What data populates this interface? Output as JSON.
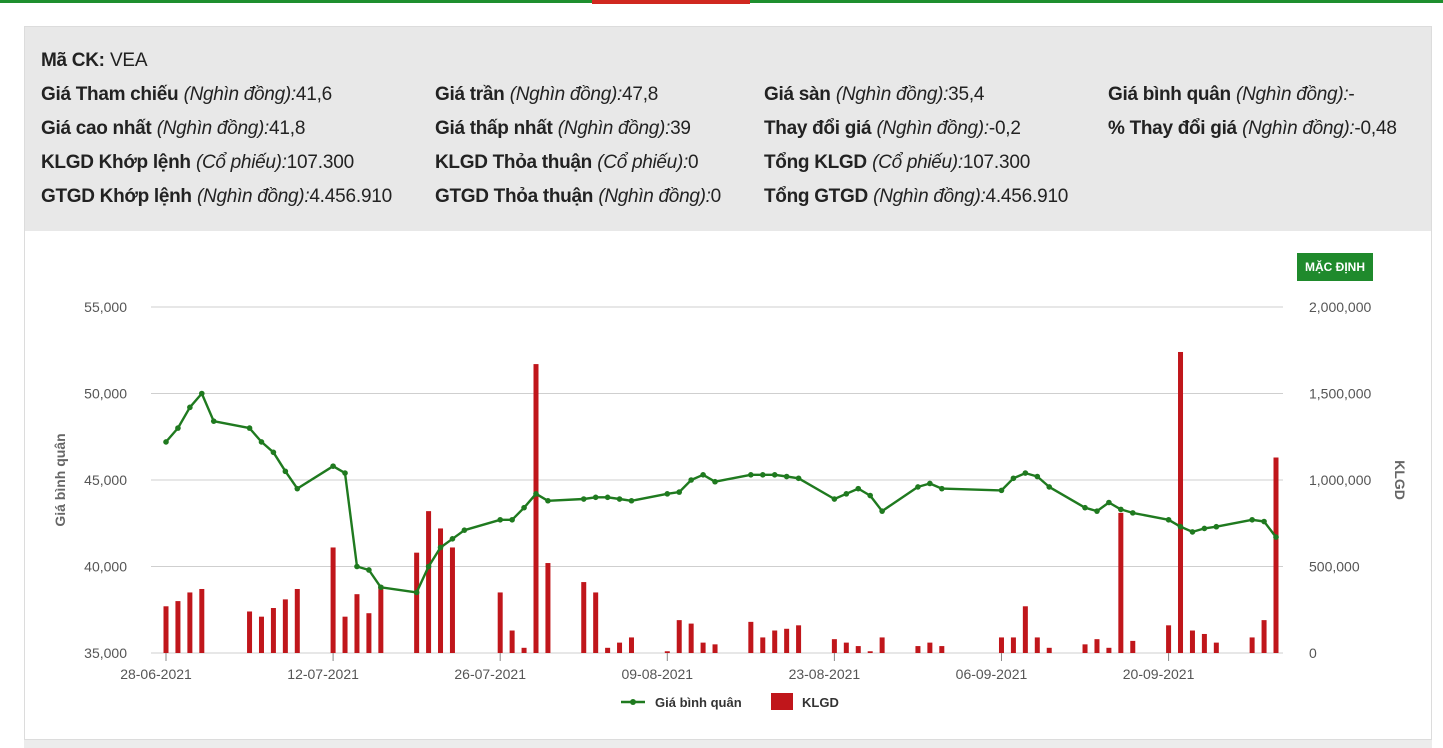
{
  "info": {
    "ma_ck": {
      "label": "Mã CK:",
      "value": "VEA"
    },
    "rows": [
      [
        {
          "label": "Giá Tham chiếu",
          "unit": "(Nghìn đồng):",
          "value": "41,6"
        },
        {
          "label": "Giá trần",
          "unit": "(Nghìn đồng):",
          "value": "47,8"
        },
        {
          "label": "Giá sàn",
          "unit": "(Nghìn đồng):",
          "value": "35,4"
        },
        {
          "label": "Giá bình quân",
          "unit": "(Nghìn đồng):",
          "value": "-"
        }
      ],
      [
        {
          "label": "Giá cao nhất",
          "unit": "(Nghìn đồng):",
          "value": "41,8"
        },
        {
          "label": "Giá thấp nhất",
          "unit": "(Nghìn đồng):",
          "value": "39"
        },
        {
          "label": "Thay đổi giá",
          "unit": "(Nghìn đồng):",
          "value": "-0,2"
        },
        {
          "label": "% Thay đổi giá",
          "unit": "(Nghìn đồng):",
          "value": "-0,48"
        }
      ],
      [
        {
          "label": "KLGD Khớp lệnh",
          "unit": "(Cổ phiếu):",
          "value": "107.300"
        },
        {
          "label": "KLGD Thỏa thuận",
          "unit": "(Cổ phiếu):",
          "value": "0"
        },
        {
          "label": "Tổng KLGD",
          "unit": "(Cổ phiếu):",
          "value": "107.300"
        },
        null
      ],
      [
        {
          "label": "GTGD Khớp lệnh",
          "unit": "(Nghìn đồng):",
          "value": "4.456.910"
        },
        {
          "label": "GTGD Thỏa thuận",
          "unit": "(Nghìn đồng):",
          "value": "0"
        },
        {
          "label": "Tổng GTGD",
          "unit": "(Nghìn đồng):",
          "value": "4.456.910"
        },
        null
      ]
    ]
  },
  "default_button": "MẶC ĐỊNH",
  "colors": {
    "price": "#1f7a1f",
    "volume": "#c0161b",
    "grid": "#cfcfcf",
    "accent": "#1f8a2c"
  },
  "chart_data": {
    "type": "bar+line",
    "x": [
      "28-06-2021",
      "29-06-2021",
      "30-06-2021",
      "01-07-2021",
      "02-07-2021",
      "05-07-2021",
      "06-07-2021",
      "07-07-2021",
      "08-07-2021",
      "09-07-2021",
      "12-07-2021",
      "13-07-2021",
      "14-07-2021",
      "15-07-2021",
      "16-07-2021",
      "19-07-2021",
      "20-07-2021",
      "21-07-2021",
      "22-07-2021",
      "23-07-2021",
      "26-07-2021",
      "27-07-2021",
      "28-07-2021",
      "29-07-2021",
      "30-07-2021",
      "02-08-2021",
      "03-08-2021",
      "04-08-2021",
      "05-08-2021",
      "06-08-2021",
      "09-08-2021",
      "10-08-2021",
      "11-08-2021",
      "12-08-2021",
      "13-08-2021",
      "16-08-2021",
      "17-08-2021",
      "18-08-2021",
      "19-08-2021",
      "20-08-2021",
      "23-08-2021",
      "24-08-2021",
      "25-08-2021",
      "26-08-2021",
      "27-08-2021",
      "30-08-2021",
      "31-08-2021",
      "01-09-2021",
      "06-09-2021",
      "07-09-2021",
      "08-09-2021",
      "09-09-2021",
      "10-09-2021",
      "13-09-2021",
      "14-09-2021",
      "15-09-2021",
      "16-09-2021",
      "17-09-2021",
      "20-09-2021",
      "21-09-2021",
      "22-09-2021",
      "23-09-2021",
      "24-09-2021",
      "27-09-2021",
      "28-09-2021",
      "29-09-2021"
    ],
    "x_ticks": [
      "28-06-2021",
      "12-07-2021",
      "26-07-2021",
      "09-08-2021",
      "23-08-2021",
      "06-09-2021",
      "20-09-2021"
    ],
    "series": [
      {
        "name": "Giá bình quân",
        "type": "line",
        "axis": "left",
        "values": [
          47200,
          48000,
          49200,
          50000,
          48400,
          48000,
          47200,
          46600,
          45500,
          44500,
          45800,
          45400,
          40000,
          39800,
          38800,
          38500,
          40000,
          41100,
          41600,
          42100,
          42700,
          42700,
          43400,
          44200,
          43800,
          43900,
          44000,
          44000,
          43900,
          43800,
          44200,
          44300,
          45000,
          45300,
          44900,
          45300,
          45300,
          45300,
          45200,
          45100,
          43900,
          44200,
          44500,
          44100,
          43200,
          44600,
          44800,
          44500,
          44400,
          45100,
          45400,
          45200,
          44600,
          43400,
          43200,
          43700,
          43300,
          43100,
          42700,
          42300,
          42000,
          42200,
          42300,
          42700,
          42600,
          41700
        ]
      },
      {
        "name": "KLGD",
        "type": "bar",
        "axis": "right",
        "values": [
          270000,
          300000,
          350000,
          370000,
          0,
          240000,
          210000,
          260000,
          310000,
          370000,
          610000,
          210000,
          340000,
          230000,
          390000,
          580000,
          820000,
          720000,
          610000,
          0,
          350000,
          130000,
          30000,
          1670000,
          520000,
          410000,
          350000,
          30000,
          60000,
          90000,
          10000,
          190000,
          170000,
          60000,
          50000,
          180000,
          90000,
          130000,
          140000,
          160000,
          80000,
          60000,
          40000,
          10000,
          90000,
          40000,
          60000,
          40000,
          90000,
          90000,
          270000,
          90000,
          30000,
          50000,
          80000,
          30000,
          810000,
          70000,
          160000,
          1740000,
          130000,
          110000,
          60000,
          90000,
          190000,
          1130000
        ]
      }
    ],
    "y_left": {
      "label": "Giá bình quân",
      "range": [
        35000,
        55000
      ],
      "ticks": [
        "35,000",
        "40,000",
        "45,000",
        "50,000",
        "55,000"
      ]
    },
    "y_right": {
      "label": "KLGD",
      "range": [
        0,
        2000000
      ],
      "ticks": [
        "0",
        "500,000",
        "1,000,000",
        "1,500,000",
        "2,000,000"
      ]
    },
    "grid": true,
    "legend": {
      "position": "bottom",
      "items": [
        "Giá bình quân",
        "KLGD"
      ]
    }
  }
}
